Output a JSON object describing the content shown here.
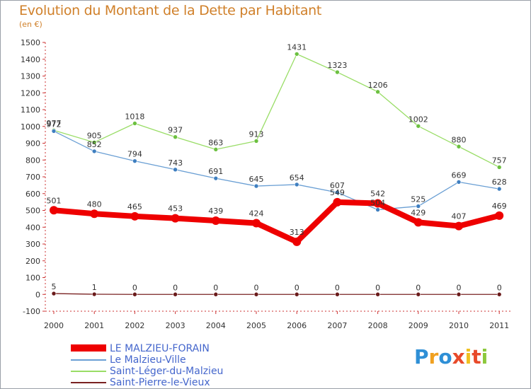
{
  "title": "Evolution du Montant de la Dette par Habitant",
  "subtitle": "(en €)",
  "logo": {
    "letters": [
      {
        "ch": "P",
        "color": "#2e8fd6"
      },
      {
        "ch": "r",
        "color": "#f0a020"
      },
      {
        "ch": "o",
        "color": "#2e8fd6"
      },
      {
        "ch": "x",
        "color": "#e84a2a"
      },
      {
        "ch": "i",
        "color": "#f0c020"
      },
      {
        "ch": "t",
        "color": "#e84a2a"
      },
      {
        "ch": "i",
        "color": "#8cc83c"
      }
    ]
  },
  "chart_data": {
    "type": "line",
    "title": "Evolution du Montant de la Dette par Habitant",
    "subtitle": "(en €)",
    "categories": [
      "2000",
      "2001",
      "2002",
      "2003",
      "2004",
      "2005",
      "2006",
      "2007",
      "2008",
      "2009",
      "2010",
      "2011"
    ],
    "ylim": [
      -100,
      1500
    ],
    "yticks": [
      -100,
      0,
      100,
      200,
      300,
      400,
      500,
      600,
      700,
      800,
      900,
      1000,
      1100,
      1200,
      1300,
      1400,
      1500
    ],
    "grid": false,
    "legend_position": "bottom-left",
    "series": [
      {
        "name": "LE MALZIEU-FORAIN",
        "color": "#ee0000",
        "marker": "#ee0000",
        "values": [
          501,
          480,
          465,
          453,
          439,
          424,
          313,
          549,
          542,
          429,
          407,
          469
        ],
        "labels": [
          "501",
          "480",
          "465",
          "453",
          "439",
          "424",
          "313",
          "549",
          "542",
          "429",
          "407",
          "469"
        ]
      },
      {
        "name": "Le Malzieu-Ville",
        "color": "#6a9fd4",
        "marker": "#3f7fc0",
        "values": [
          972,
          852,
          794,
          743,
          691,
          645,
          654,
          607,
          504,
          525,
          669,
          628
        ],
        "labels": [
          "972",
          "852",
          "794",
          "743",
          "691",
          "645",
          "654",
          "607",
          "504",
          "525",
          "669",
          "628"
        ]
      },
      {
        "name": "Saint-Léger-du-Malzieu",
        "color": "#99dd66",
        "marker": "#6cc040",
        "values": [
          977,
          905,
          1018,
          937,
          863,
          913,
          1431,
          1323,
          1206,
          1002,
          880,
          757
        ],
        "labels": [
          "977",
          "905",
          "1018",
          "937",
          "863",
          "913",
          "1431",
          "1323",
          "1206",
          "1002",
          "880",
          "757"
        ]
      },
      {
        "name": "Saint-Pierre-le-Vieux",
        "color": "#7a2222",
        "marker": "#6a1a1a",
        "values": [
          5,
          1,
          0,
          0,
          0,
          0,
          0,
          0,
          0,
          0,
          0,
          0
        ],
        "labels": [
          "5",
          "1",
          "0",
          "0",
          "0",
          "0",
          "0",
          "0",
          "0",
          "0",
          "0",
          "0"
        ]
      }
    ]
  }
}
